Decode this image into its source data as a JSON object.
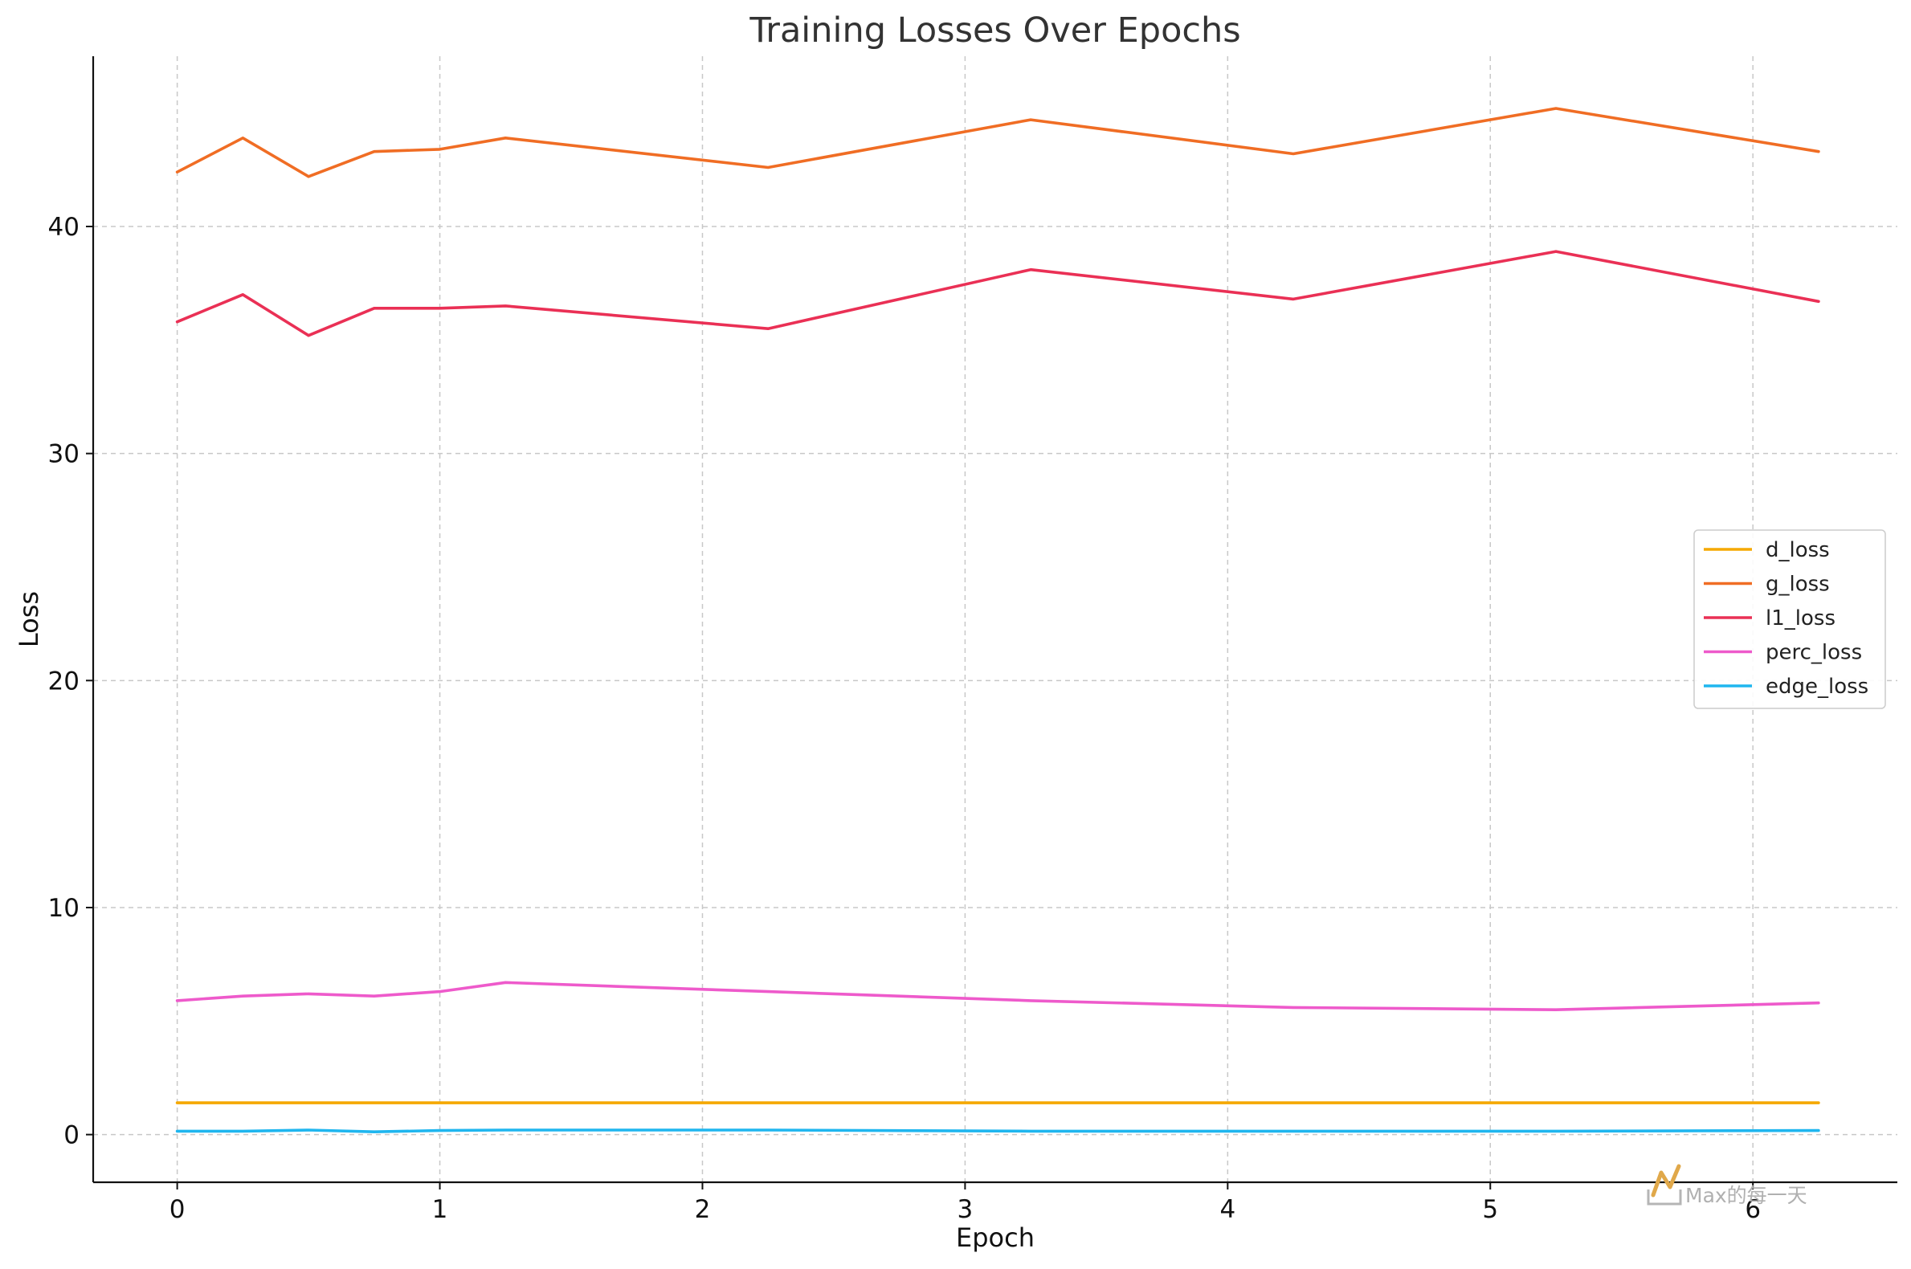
{
  "chart_data": {
    "type": "line",
    "title": "Training Losses Over Epochs",
    "xlabel": "Epoch",
    "ylabel": "Loss",
    "xlim": [
      -0.32,
      6.55
    ],
    "ylim": [
      -2.1,
      47.5
    ],
    "xticks": [
      0,
      1,
      2,
      3,
      4,
      5,
      6
    ],
    "yticks": [
      0,
      10,
      20,
      30,
      40
    ],
    "grid": true,
    "legend_position": "center-right",
    "x": [
      0,
      0.25,
      0.5,
      0.75,
      1,
      1.25,
      2.25,
      3.25,
      4.25,
      5.25,
      6.25
    ],
    "series": [
      {
        "name": "d_loss",
        "color": "#f5a800",
        "values": [
          1.4,
          1.4,
          1.4,
          1.4,
          1.4,
          1.4,
          1.4,
          1.4,
          1.4,
          1.4,
          1.4
        ]
      },
      {
        "name": "g_loss",
        "color": "#f06d24",
        "values": [
          42.4,
          43.9,
          42.2,
          43.3,
          43.4,
          43.9,
          42.6,
          44.7,
          43.2,
          45.2,
          43.3
        ]
      },
      {
        "name": "l1_loss",
        "color": "#ea3055",
        "values": [
          35.8,
          37.0,
          35.2,
          36.4,
          36.4,
          36.5,
          35.5,
          38.1,
          36.8,
          38.9,
          36.7
        ]
      },
      {
        "name": "perc_loss",
        "color": "#ee5acb",
        "values": [
          5.9,
          6.1,
          6.2,
          6.1,
          6.3,
          6.7,
          6.3,
          5.9,
          5.6,
          5.5,
          5.8
        ]
      },
      {
        "name": "edge_loss",
        "color": "#1fb6ef",
        "values": [
          0.15,
          0.15,
          0.2,
          0.12,
          0.18,
          0.2,
          0.2,
          0.15,
          0.15,
          0.15,
          0.18
        ]
      }
    ]
  },
  "watermark": {
    "text": "Max的每一天",
    "color": "#e0a84a"
  }
}
